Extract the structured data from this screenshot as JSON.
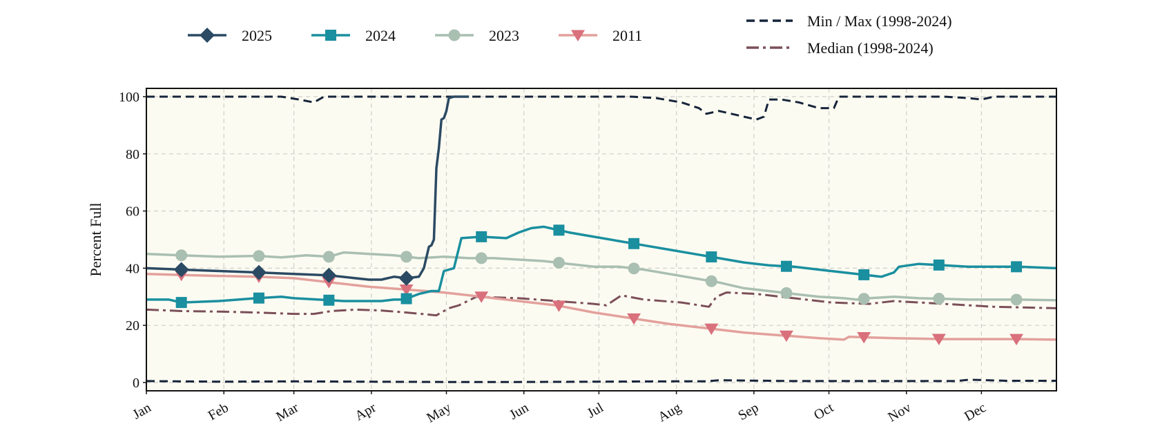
{
  "chart_data": {
    "type": "line",
    "title": "",
    "xlabel": "",
    "ylabel": "Percent Full",
    "ylim": [
      0,
      100
    ],
    "xlim": [
      1,
      365
    ],
    "grid": true,
    "plot_background": "#fcfbf2",
    "legend_placement": "top",
    "x_ticks": [
      {
        "day": 1,
        "label": "Jan"
      },
      {
        "day": 32,
        "label": "Feb"
      },
      {
        "day": 60,
        "label": "Mar"
      },
      {
        "day": 91,
        "label": "Apr"
      },
      {
        "day": 121,
        "label": "May"
      },
      {
        "day": 152,
        "label": "Jun"
      },
      {
        "day": 182,
        "label": "Jul"
      },
      {
        "day": 213,
        "label": "Aug"
      },
      {
        "day": 244,
        "label": "Sep"
      },
      {
        "day": 274,
        "label": "Oct"
      },
      {
        "day": 305,
        "label": "Nov"
      },
      {
        "day": 335,
        "label": "Dec"
      }
    ],
    "y_ticks": [
      0,
      20,
      40,
      60,
      80,
      100
    ],
    "series": [
      {
        "name": "Min / Max (1998-2024)",
        "legend_label": "Min / Max (1998-2024)",
        "role": "max",
        "color": "#16243a",
        "dash": "12,7",
        "width": 3,
        "x": [
          1,
          30,
          55,
          62,
          68,
          72,
          90,
          120,
          150,
          180,
          195,
          205,
          215,
          222,
          225,
          230,
          235,
          240,
          245,
          248,
          250,
          255,
          262,
          270,
          276,
          278,
          300,
          320,
          330,
          335,
          340,
          350,
          365
        ],
        "y": [
          100,
          100,
          100,
          99,
          98,
          100,
          100,
          100,
          100,
          100,
          100,
          99.5,
          98,
          96,
          94,
          95,
          94,
          93,
          92,
          93,
          99,
          99,
          98,
          96,
          96,
          100,
          100,
          100,
          99.5,
          99,
          100,
          100,
          100
        ]
      },
      {
        "name": "Min / Max (1998-2024)",
        "role": "min",
        "color": "#16243a",
        "dash": "12,7",
        "width": 3,
        "x": [
          1,
          30,
          60,
          90,
          120,
          150,
          180,
          210,
          225,
          230,
          260,
          300,
          325,
          330,
          345,
          365
        ],
        "y": [
          0.5,
          0.3,
          0.4,
          0.3,
          0.2,
          0.2,
          0.3,
          0.4,
          0.4,
          0.8,
          0.5,
          0.5,
          0.5,
          1,
          0.6,
          0.6
        ]
      },
      {
        "name": "Median (1998-2024)",
        "legend_label": "Median (1998-2024)",
        "color": "#7b4f58",
        "dash": "18,6,4,6",
        "width": 3,
        "x": [
          1,
          15,
          30,
          45,
          60,
          68,
          75,
          85,
          95,
          105,
          117,
          118,
          122,
          126,
          133,
          150,
          165,
          180,
          185,
          191,
          200,
          215,
          226,
          229,
          233,
          245,
          260,
          275,
          290,
          300,
          320,
          340,
          365
        ],
        "y": [
          25.5,
          25,
          24.8,
          24.5,
          24,
          24,
          25,
          25.5,
          25.2,
          24.5,
          23.5,
          24,
          26,
          27,
          30,
          29.5,
          28.5,
          27.5,
          27,
          30.5,
          29,
          28,
          26.5,
          30,
          31.5,
          31,
          29.5,
          28,
          27.5,
          28.5,
          27.5,
          26.5,
          26
        ]
      },
      {
        "name": "2011",
        "legend_label": "2011",
        "color": "#e3a19c",
        "marker_color": "#d9707c",
        "marker": "triangle-down",
        "width": 3.5,
        "x": [
          1,
          15,
          30,
          45,
          60,
          75,
          90,
          105,
          120,
          135,
          150,
          165,
          180,
          195,
          210,
          225,
          240,
          255,
          270,
          280,
          282,
          300,
          320,
          335,
          350,
          365
        ],
        "y": [
          38,
          37.6,
          37.3,
          37,
          36.5,
          35,
          33.5,
          32.5,
          31.5,
          30,
          28.5,
          27,
          24.5,
          22.5,
          20.5,
          19,
          17.5,
          16.5,
          15.5,
          15,
          16,
          15.5,
          15.2,
          15.2,
          15.2,
          15
        ],
        "marker_x": [
          15,
          46,
          74,
          105,
          135,
          166,
          196,
          227,
          257,
          288,
          318,
          349
        ]
      },
      {
        "name": "2023",
        "legend_label": "2023",
        "color": "#a9bfb1",
        "marker": "circle",
        "width": 3.5,
        "x": [
          1,
          15,
          30,
          45,
          55,
          65,
          74,
          80,
          90,
          100,
          110,
          120,
          130,
          140,
          150,
          160,
          170,
          180,
          190,
          200,
          210,
          220,
          230,
          240,
          250,
          260,
          270,
          280,
          285,
          290,
          300,
          310,
          320,
          330,
          340,
          350,
          365
        ],
        "y": [
          45,
          44.5,
          44,
          44.3,
          43.8,
          44.5,
          44,
          45.5,
          45,
          44.5,
          43.5,
          44,
          43.5,
          43.5,
          43,
          42.5,
          41.5,
          40.5,
          40.5,
          39.5,
          38,
          36.5,
          35,
          33,
          32,
          31,
          30,
          29.5,
          29,
          29.5,
          30,
          29.5,
          29.3,
          29,
          29,
          29,
          28.8
        ],
        "marker_x": [
          15,
          46,
          74,
          105,
          135,
          166,
          196,
          227,
          257,
          288,
          318,
          349
        ]
      },
      {
        "name": "2024",
        "legend_label": "2024",
        "color": "#1a8f9f",
        "marker": "square",
        "width": 3.5,
        "x": [
          1,
          10,
          15,
          30,
          45,
          55,
          60,
          70,
          80,
          95,
          100,
          104,
          110,
          115,
          118,
          120,
          124,
          127,
          135,
          145,
          150,
          155,
          160,
          170,
          180,
          190,
          200,
          210,
          220,
          230,
          240,
          250,
          260,
          270,
          280,
          290,
          295,
          300,
          302,
          310,
          320,
          330,
          340,
          350,
          365
        ],
        "y": [
          29,
          29,
          28,
          28.5,
          29.5,
          30,
          29.5,
          29,
          28.5,
          28.5,
          29,
          29,
          31,
          32,
          32,
          39,
          40,
          50.5,
          51,
          50.5,
          52.5,
          54,
          54.5,
          52.5,
          51,
          49.5,
          48,
          46.5,
          45,
          43.5,
          42,
          41,
          40.5,
          39.5,
          38.5,
          37.5,
          37,
          38.5,
          40.5,
          41.5,
          41,
          40.5,
          40.5,
          40.5,
          40
        ],
        "marker_x": [
          15,
          46,
          74,
          105,
          135,
          166,
          196,
          227,
          257,
          288,
          318,
          349
        ]
      },
      {
        "name": "2025",
        "legend_label": "2025",
        "color": "#2b4a63",
        "marker": "diamond",
        "width": 3.5,
        "x": [
          1,
          15,
          30,
          46,
          60,
          74,
          90,
          95,
          100,
          105,
          110,
          112,
          114,
          115,
          116,
          117,
          118,
          119,
          120,
          121,
          122,
          124,
          126,
          129,
          130
        ],
        "y": [
          40,
          39.5,
          39,
          38.5,
          38,
          37.5,
          36,
          36,
          37,
          36.5,
          37,
          40,
          47.5,
          48,
          50,
          75,
          82,
          92,
          92.5,
          95,
          99.5,
          100,
          100,
          100,
          100
        ],
        "marker_x": [
          15,
          46,
          74,
          105
        ]
      }
    ]
  }
}
